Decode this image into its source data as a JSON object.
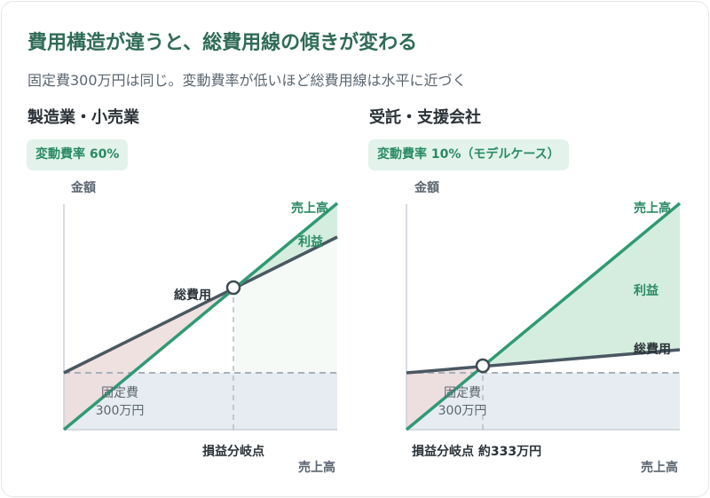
{
  "title": "費用構造が違うと、総費用線の傾きが変わる",
  "subtitle": "固定費300万円は同じ。変動費率が低いほど総費用線は水平に近づく",
  "colors": {
    "title": "#2f6b57",
    "sales_line": "#2f9a74",
    "total_cost_line": "#4a5862",
    "profit_area": "#e3f3ec",
    "loss_area": "#eddcdc",
    "fixed_cost_area": "#e6ecf1"
  },
  "panels": [
    {
      "title": "製造業・小売業",
      "badge": "変動費率 60%",
      "y_axis_label": "金額",
      "x_axis_label": "売上高",
      "sales_line_label": "売上高",
      "profit_label": "利益",
      "total_cost_label": "総費用",
      "fixed_cost_label_line1": "固定費",
      "fixed_cost_label_line2": "300万円",
      "break_even_label": "損益分岐点"
    },
    {
      "title": "受託・支援会社",
      "badge": "変動費率 10%（モデルケース）",
      "y_axis_label": "金額",
      "x_axis_label": "売上高",
      "sales_line_label": "売上高",
      "profit_label": "利益",
      "total_cost_label": "総費用",
      "fixed_cost_label_line1": "固定費",
      "fixed_cost_label_line2": "300万円",
      "break_even_label": "損益分岐点 約333万円"
    }
  ]
}
